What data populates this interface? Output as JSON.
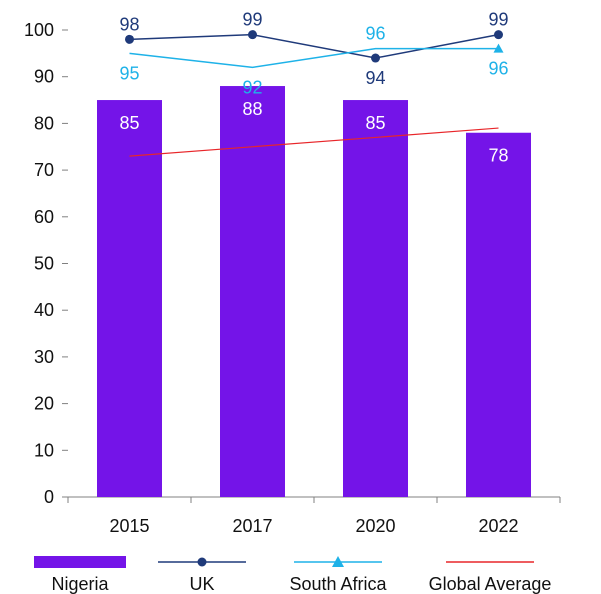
{
  "chart_data": {
    "type": "bar",
    "categories": [
      "2015",
      "2017",
      "2020",
      "2022"
    ],
    "ylim": [
      0,
      100
    ],
    "yticks": [
      0,
      10,
      20,
      30,
      40,
      50,
      60,
      70,
      80,
      90,
      100
    ],
    "grid": false,
    "legend_position": "bottom",
    "bars": {
      "name": "Nigeria",
      "color": "#7414E8",
      "values": [
        85,
        88,
        85,
        78
      ]
    },
    "lines": [
      {
        "name": "UK",
        "color": "#1F3A7A",
        "values": [
          98,
          99,
          94,
          99
        ],
        "marker": "circle",
        "labels": true
      },
      {
        "name": "South Africa",
        "color": "#1EB2E8",
        "values": [
          95,
          92,
          96,
          96
        ],
        "marker": "triangle",
        "labels": true
      },
      {
        "name": "Global Average",
        "color": "#E8262A",
        "start": 73,
        "end": 79,
        "marker": "none",
        "labels": false
      }
    ]
  }
}
